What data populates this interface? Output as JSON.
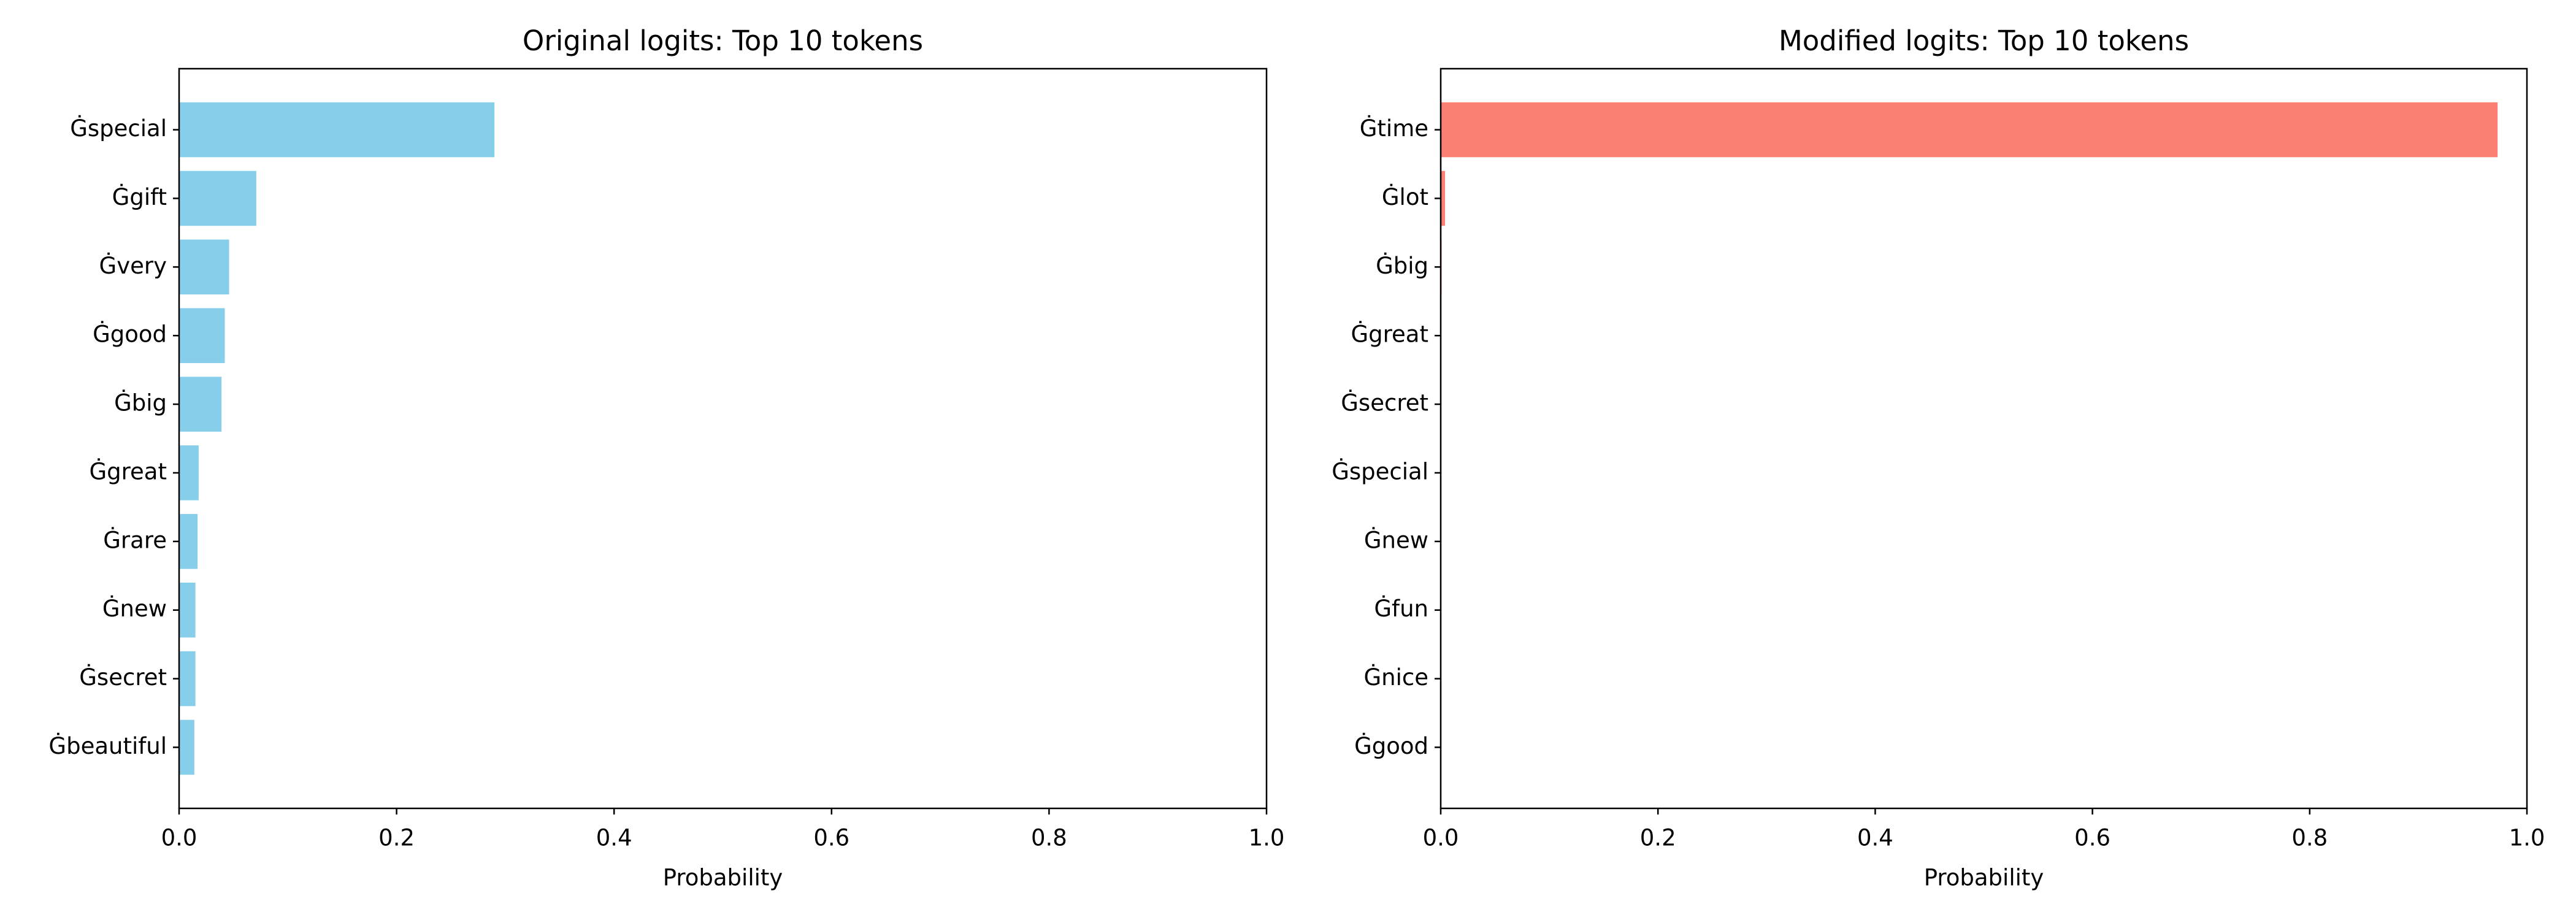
{
  "chart_data": [
    {
      "type": "barh",
      "title": "Original logits: Top 10 tokens",
      "xlabel": "Probability",
      "categories": [
        "Ġspecial",
        "Ġgift",
        "Ġvery",
        "Ġgood",
        "Ġbig",
        "Ġgreat",
        "Ġrare",
        "Ġnew",
        "Ġsecret",
        "Ġbeautiful"
      ],
      "values": [
        0.29,
        0.071,
        0.046,
        0.042,
        0.039,
        0.018,
        0.017,
        0.015,
        0.015,
        0.014
      ],
      "color": "#87ceeb",
      "xlim": [
        0,
        1
      ],
      "xticks": [
        {
          "value": 0,
          "label": "0.0"
        },
        0.2,
        0.4,
        0.6,
        0.8,
        {
          "value": 1,
          "label": "1.0"
        }
      ],
      "grid": false
    },
    {
      "type": "barh",
      "title": "Modified logits: Top 10 tokens",
      "xlabel": "Probability",
      "categories": [
        "Ġtime",
        "Ġlot",
        "Ġbig",
        "Ġgreat",
        "Ġsecret",
        "Ġspecial",
        "Ġnew",
        "Ġfun",
        "Ġnice",
        "Ġgood"
      ],
      "values": [
        0.973,
        0.004,
        0.0008,
        0.0006,
        0.0005,
        0.0004,
        0.0003,
        0.0003,
        0.0002,
        0.0002
      ],
      "color": "#fa8072",
      "xlim": [
        0,
        1
      ],
      "xticks": [
        {
          "value": 0,
          "label": "0.0"
        },
        0.2,
        0.4,
        0.6,
        0.8,
        {
          "value": 1,
          "label": "1.0"
        }
      ],
      "grid": false
    }
  ]
}
